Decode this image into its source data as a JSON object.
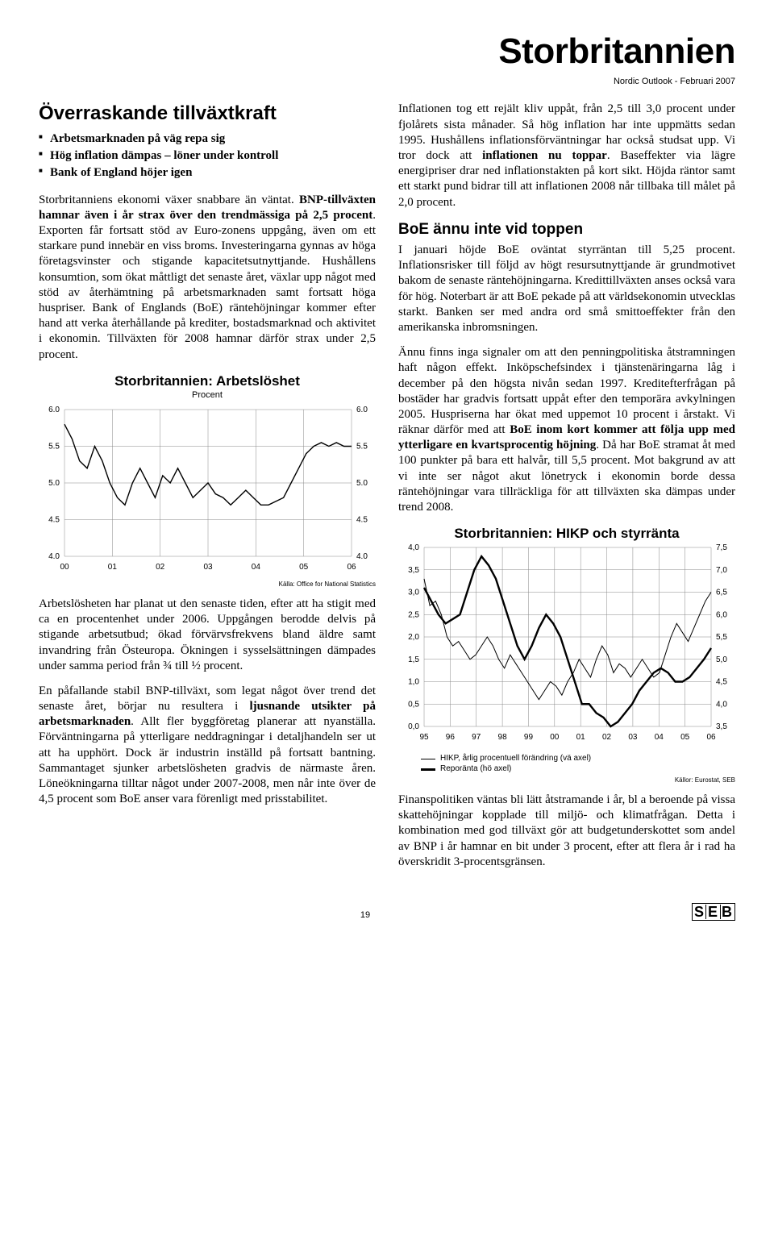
{
  "header": {
    "title": "Storbritannien",
    "subtitle": "Nordic Outlook - Februari 2007"
  },
  "left": {
    "heading": "Överraskande tillväxtkraft",
    "bullets": [
      "Arbetsmarknaden på väg repa sig",
      "Hög inflation dämpas – löner under kontroll",
      "Bank of England höjer igen"
    ],
    "p1_a": "Storbritanniens ekonomi växer snabbare än väntat. ",
    "p1_b": "BNP-tillväxten hamnar även i år strax över den trendmässiga på 2,5 procent",
    "p1_c": ". Exporten får fortsatt stöd av Euro-zonens uppgång, även om ett starkare pund innebär en viss broms. Investeringarna gynnas av höga företagsvinster och stigande kapacitetsutnyttjande. Hushållens konsumtion, som ökat måttligt det senaste året, växlar upp något med stöd av återhämtning på arbetsmarknaden samt fortsatt höga huspriser. Bank of Englands (BoE) räntehöjningar kommer efter hand att verka återhållande på krediter, bostadsmarknad och aktivitet i ekonomin. Tillväxten för 2008 hamnar därför strax under 2,5 procent.",
    "chart1": {
      "title": "Storbritannien: Arbetslöshet",
      "subtitle": "Procent",
      "source": "Källa: Office for National Statistics",
      "years": [
        "00",
        "01",
        "02",
        "03",
        "04",
        "05",
        "06"
      ],
      "yticks": [
        "4.0",
        "4.5",
        "5.0",
        "5.5",
        "6.0"
      ],
      "ymin": 4.0,
      "ymax": 6.0,
      "y": [
        5.8,
        5.6,
        5.3,
        5.2,
        5.5,
        5.3,
        5.0,
        4.8,
        4.7,
        5.0,
        5.2,
        5.0,
        4.8,
        5.1,
        5.0,
        5.2,
        5.0,
        4.8,
        4.9,
        5.0,
        4.85,
        4.8,
        4.7,
        4.8,
        4.9,
        4.8,
        4.7,
        4.7,
        4.75,
        4.8,
        5.0,
        5.2,
        5.4,
        5.5,
        5.55,
        5.5,
        5.55,
        5.5,
        5.5
      ],
      "grid_color": "#888888",
      "line_color": "#000000",
      "bg": "#ffffff"
    },
    "p2": "Arbetslösheten har planat ut den senaste tiden, efter att ha stigit med ca en procentenhet under 2006. Uppgången berodde delvis på stigande arbetsutbud; ökad förvärvsfrekvens bland äldre samt invandring från Östeuropa. Ökningen i sysselsättningen dämpades under samma period från ¾ till ½ procent.",
    "p3_a": "En påfallande stabil BNP-tillväxt, som legat något över trend det senaste året, börjar nu resultera i ",
    "p3_b": "ljusnande utsikter på arbetsmarknaden",
    "p3_c": ". Allt fler byggföretag planerar att nyanställa. Förväntningarna på ytterligare neddragningar i detaljhandeln ser ut att ha upphört. Dock är industrin inställd på fortsatt bantning. Sammantaget sjunker arbetslösheten gradvis de närmaste åren. Löneökningarna tilltar något under 2007-2008, men når inte över de 4,5 procent som BoE anser vara förenligt med prisstabilitet."
  },
  "right": {
    "p1_a": "Inflationen tog ett rejält kliv uppåt, från 2,5 till 3,0 procent under fjolårets sista månader. Så hög inflation har inte uppmätts sedan 1995. Hushållens inflationsförväntningar har också studsat upp. Vi tror dock att ",
    "p1_b": "inflationen nu toppar",
    "p1_c": ". Baseffekter via lägre energipriser drar ned inflationstakten på kort sikt. Höjda räntor samt ett starkt pund bidrar till att inflationen 2008 når tillbaka till målet på 2,0 procent.",
    "heading2": "BoE ännu inte vid toppen",
    "p2": "I januari höjde BoE oväntat styrräntan till 5,25 procent. Inflationsrisker till följd av högt resursutnyttjande är grundmotivet bakom de senaste räntehöjningarna. Kredittillväxten anses också vara för hög. Noterbart är att BoE pekade på att världsekonomin utvecklas starkt. Banken ser med andra ord små smittoeffekter från den amerikanska inbromsningen.",
    "p3_a": "Ännu finns inga signaler om att den penningpolitiska åtstramningen haft någon effekt. Inköpschefsindex i tjänstenäringarna låg i december på den högsta nivån sedan 1997. Kreditefterfrågan på bostäder har gradvis fortsatt uppåt efter den temporära avkylningen 2005. Huspriserna har ökat med uppemot 10 procent i årstakt. Vi räknar därför med att ",
    "p3_b": "BoE inom kort kommer att följa upp med ytterligare en kvartsprocentig höjning",
    "p3_c": ". Då har BoE stramat åt med 100 punkter på bara ett halvår, till 5,5 procent. Mot bakgrund av att vi inte ser något akut lönetryck i ekonomin borde dessa räntehöjningar vara tillräckliga för att tillväxten ska dämpas under trend 2008.",
    "chart2": {
      "title": "Storbritannien: HIKP och styrränta",
      "source": "Källor: Eurostat, SEB",
      "years": [
        "95",
        "96",
        "97",
        "98",
        "99",
        "00",
        "01",
        "02",
        "03",
        "04",
        "05",
        "06"
      ],
      "left_ticks": [
        "0,0",
        "0,5",
        "1,0",
        "1,5",
        "2,0",
        "2,5",
        "3,0",
        "3,5",
        "4,0"
      ],
      "right_ticks": [
        "3,5",
        "4,0",
        "4,5",
        "5,0",
        "5,5",
        "6,0",
        "6,5",
        "7,0",
        "7,5"
      ],
      "left_min": 0,
      "left_max": 4,
      "right_min": 3.5,
      "right_max": 7.5,
      "hikp": [
        3.3,
        2.7,
        2.8,
        2.5,
        2.0,
        1.8,
        1.9,
        1.7,
        1.5,
        1.6,
        1.8,
        2.0,
        1.8,
        1.5,
        1.3,
        1.6,
        1.4,
        1.2,
        1.0,
        0.8,
        0.6,
        0.8,
        1.0,
        0.9,
        0.7,
        1.0,
        1.2,
        1.5,
        1.3,
        1.1,
        1.5,
        1.8,
        1.6,
        1.2,
        1.4,
        1.3,
        1.1,
        1.3,
        1.5,
        1.3,
        1.1,
        1.2,
        1.6,
        2.0,
        2.3,
        2.1,
        1.9,
        2.2,
        2.5,
        2.8,
        3.0
      ],
      "repo": [
        6.6,
        6.3,
        6.0,
        5.8,
        5.9,
        6.0,
        6.5,
        7.0,
        7.3,
        7.1,
        6.8,
        6.3,
        5.8,
        5.3,
        5.0,
        5.3,
        5.7,
        6.0,
        5.8,
        5.5,
        5.0,
        4.5,
        4.0,
        4.0,
        3.8,
        3.7,
        3.5,
        3.6,
        3.8,
        4.0,
        4.3,
        4.5,
        4.7,
        4.8,
        4.7,
        4.5,
        4.5,
        4.6,
        4.8,
        5.0,
        5.25
      ],
      "grid_color": "#888888",
      "thin_color": "#000000",
      "thick_color": "#000000",
      "legend1": "HIKP, årlig procentuell förändring (vä axel)",
      "legend2": "Reporänta (hö axel)"
    },
    "p4": "Finanspolitiken väntas bli lätt åtstramande i år, bl a beroende på vissa skattehöjningar kopplade till miljö- och klimatfrågan. Detta i kombination med god tillväxt gör att budgetunderskottet som andel av BNP i år hamnar en bit under 3 procent, efter att flera år i rad ha överskridit 3-procentsgränsen."
  },
  "footer": {
    "page": "19",
    "logo": "S|E|B"
  }
}
